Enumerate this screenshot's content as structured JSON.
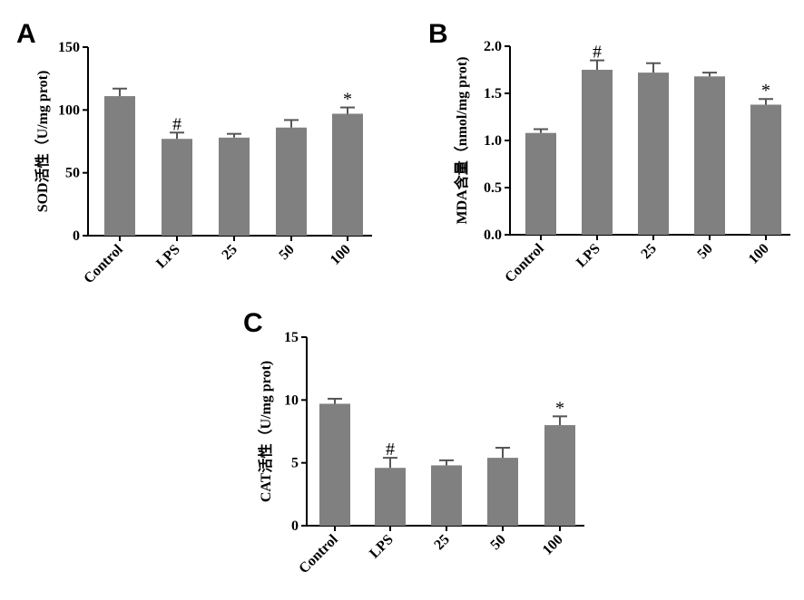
{
  "chart_data": [
    {
      "panel": "A",
      "type": "bar",
      "ylabel": "SOD活性（U/mg prot)",
      "categories": [
        "Control",
        "LPS",
        "25",
        "50",
        "100"
      ],
      "values": [
        111,
        77,
        78,
        86,
        97
      ],
      "errors": [
        6,
        5,
        3,
        6,
        5
      ],
      "significance": [
        "",
        "#",
        "",
        "",
        "*"
      ],
      "ylim": [
        0,
        150
      ],
      "yticks": [
        "0",
        "50",
        "100",
        "150"
      ],
      "bar_color": "#808080"
    },
    {
      "panel": "B",
      "type": "bar",
      "ylabel": "MDA含量（nmol/mg prot)",
      "categories": [
        "Control",
        "LPS",
        "25",
        "50",
        "100"
      ],
      "values": [
        1.08,
        1.75,
        1.72,
        1.68,
        1.38
      ],
      "errors": [
        0.04,
        0.1,
        0.1,
        0.04,
        0.06
      ],
      "significance": [
        "",
        "#",
        "",
        "",
        "*"
      ],
      "ylim": [
        0,
        2.0
      ],
      "yticks": [
        "0.0",
        "0.5",
        "1.0",
        "1.5",
        "2.0"
      ],
      "bar_color": "#808080"
    },
    {
      "panel": "C",
      "type": "bar",
      "ylabel": "CAT活性（U/mg prot)",
      "categories": [
        "Control",
        "LPS",
        "25",
        "50",
        "100"
      ],
      "values": [
        9.7,
        4.6,
        4.8,
        5.4,
        8.0
      ],
      "errors": [
        0.4,
        0.8,
        0.4,
        0.8,
        0.7
      ],
      "significance": [
        "",
        "#",
        "",
        "",
        "*"
      ],
      "ylim": [
        0,
        15
      ],
      "yticks": [
        "0",
        "5",
        "10",
        "15"
      ],
      "bar_color": "#808080"
    }
  ]
}
